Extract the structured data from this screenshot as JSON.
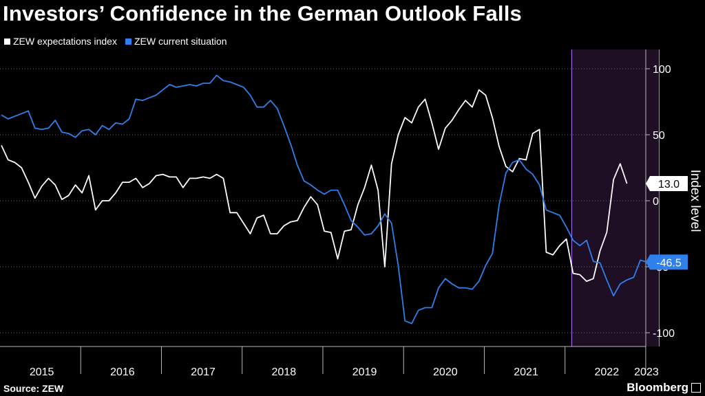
{
  "title": "Investors’ Confidence in the German Outlook Falls",
  "legend": [
    {
      "label": "ZEW expectations index",
      "color": "#ffffff"
    },
    {
      "label": "ZEW current situation",
      "color": "#2f80ed"
    }
  ],
  "source": "Source: ZEW",
  "brand": "Bloomberg",
  "chart_data": {
    "type": "line",
    "ylabel": "Index level",
    "ylim": [
      -100,
      100
    ],
    "y_ticks": [
      100,
      50,
      0,
      -50,
      -100
    ],
    "y_tick_labels": [
      "100",
      "50",
      "0",
      "-50",
      "-100"
    ],
    "x_tick_labels": [
      "2015",
      "2016",
      "2017",
      "2018",
      "2019",
      "2020",
      "2021",
      "2022",
      "2023"
    ],
    "grid": "horizontal-dotted",
    "legend_position": "top-left",
    "highlight_region": {
      "from": "2022-02",
      "to": "2023-03",
      "color": "#1e0f24",
      "border": "#b07cff"
    },
    "series": [
      {
        "name": "ZEW expectations index",
        "color": "#ffffff",
        "end_label": "13.0",
        "points": [
          [
            "2015-01",
            42
          ],
          [
            "2015-02",
            31
          ],
          [
            "2015-03",
            29
          ],
          [
            "2015-04",
            25
          ],
          [
            "2015-05",
            14
          ],
          [
            "2015-06",
            2
          ],
          [
            "2015-07",
            11
          ],
          [
            "2015-08",
            17
          ],
          [
            "2015-09",
            12
          ],
          [
            "2015-10",
            1
          ],
          [
            "2015-11",
            4
          ],
          [
            "2015-12",
            12
          ],
          [
            "2016-01",
            6
          ],
          [
            "2016-02",
            19
          ],
          [
            "2016-03",
            -7
          ],
          [
            "2016-04",
            0
          ],
          [
            "2016-05",
            0
          ],
          [
            "2016-06",
            6
          ],
          [
            "2016-07",
            14
          ],
          [
            "2016-08",
            14
          ],
          [
            "2016-09",
            17
          ],
          [
            "2016-10",
            10
          ],
          [
            "2016-11",
            13
          ],
          [
            "2016-12",
            19
          ],
          [
            "2017-01",
            20
          ],
          [
            "2017-02",
            18
          ],
          [
            "2017-03",
            18
          ],
          [
            "2017-04",
            10
          ],
          [
            "2017-05",
            17
          ],
          [
            "2017-06",
            17
          ],
          [
            "2017-07",
            18
          ],
          [
            "2017-08",
            17
          ],
          [
            "2017-09",
            20
          ],
          [
            "2017-10",
            17
          ],
          [
            "2017-11",
            -9
          ],
          [
            "2017-12",
            -9
          ],
          [
            "2018-01",
            -17
          ],
          [
            "2018-02",
            -25
          ],
          [
            "2018-03",
            -13
          ],
          [
            "2018-04",
            -11
          ],
          [
            "2018-05",
            -25
          ],
          [
            "2018-06",
            -25
          ],
          [
            "2018-07",
            -19
          ],
          [
            "2018-08",
            -16
          ],
          [
            "2018-09",
            -15
          ],
          [
            "2018-10",
            -5
          ],
          [
            "2018-11",
            3
          ],
          [
            "2018-12",
            -3
          ],
          [
            "2019-01",
            -23
          ],
          [
            "2019-02",
            -24
          ],
          [
            "2019-03",
            -44
          ],
          [
            "2019-04",
            -23
          ],
          [
            "2019-05",
            -22
          ],
          [
            "2019-06",
            -3
          ],
          [
            "2019-07",
            10
          ],
          [
            "2019-08",
            27
          ],
          [
            "2019-09",
            8
          ],
          [
            "2019-10",
            -50
          ],
          [
            "2019-11",
            28
          ],
          [
            "2019-12",
            50
          ],
          [
            "2020-01",
            63
          ],
          [
            "2020-02",
            59
          ],
          [
            "2020-03",
            71
          ],
          [
            "2020-04",
            77
          ],
          [
            "2020-05",
            59
          ],
          [
            "2020-06",
            39
          ],
          [
            "2020-07",
            55
          ],
          [
            "2020-08",
            61
          ],
          [
            "2020-09",
            69
          ],
          [
            "2020-10",
            76
          ],
          [
            "2020-11",
            71
          ],
          [
            "2020-12",
            84
          ],
          [
            "2021-01",
            80
          ],
          [
            "2021-02",
            63
          ],
          [
            "2021-03",
            41
          ],
          [
            "2021-04",
            26
          ],
          [
            "2021-05",
            22
          ],
          [
            "2021-06",
            32
          ],
          [
            "2021-07",
            31
          ],
          [
            "2021-08",
            51
          ],
          [
            "2021-09",
            54
          ],
          [
            "2021-10",
            -39
          ],
          [
            "2021-11",
            -41
          ],
          [
            "2021-12",
            -34
          ],
          [
            "2022-01",
            -29
          ],
          [
            "2022-02",
            -55
          ],
          [
            "2022-03",
            -56
          ],
          [
            "2022-04",
            -61
          ],
          [
            "2022-05",
            -59
          ],
          [
            "2022-06",
            -38
          ],
          [
            "2022-07",
            -24
          ],
          [
            "2022-08",
            16
          ],
          [
            "2022-09",
            28
          ],
          [
            "2022-10",
            13.0
          ]
        ]
      },
      {
        "name": "ZEW current situation",
        "color": "#2f80ed",
        "end_label": "-46.5",
        "points": [
          [
            "2015-01",
            65
          ],
          [
            "2015-02",
            62
          ],
          [
            "2015-03",
            64
          ],
          [
            "2015-04",
            66
          ],
          [
            "2015-05",
            68
          ],
          [
            "2015-06",
            55
          ],
          [
            "2015-07",
            54
          ],
          [
            "2015-08",
            55
          ],
          [
            "2015-09",
            61
          ],
          [
            "2015-10",
            52
          ],
          [
            "2015-11",
            51
          ],
          [
            "2015-12",
            48
          ],
          [
            "2016-01",
            53
          ],
          [
            "2016-02",
            54
          ],
          [
            "2016-03",
            50
          ],
          [
            "2016-04",
            57
          ],
          [
            "2016-05",
            54
          ],
          [
            "2016-06",
            59
          ],
          [
            "2016-07",
            58
          ],
          [
            "2016-08",
            62
          ],
          [
            "2016-09",
            77
          ],
          [
            "2016-10",
            76
          ],
          [
            "2016-11",
            78
          ],
          [
            "2016-12",
            80
          ],
          [
            "2017-01",
            84
          ],
          [
            "2017-02",
            88
          ],
          [
            "2017-03",
            86
          ],
          [
            "2017-04",
            87
          ],
          [
            "2017-05",
            88
          ],
          [
            "2017-06",
            87
          ],
          [
            "2017-07",
            89
          ],
          [
            "2017-08",
            89
          ],
          [
            "2017-09",
            95
          ],
          [
            "2017-10",
            91
          ],
          [
            "2017-11",
            90
          ],
          [
            "2017-12",
            88
          ],
          [
            "2018-01",
            86
          ],
          [
            "2018-02",
            80
          ],
          [
            "2018-03",
            71
          ],
          [
            "2018-04",
            71
          ],
          [
            "2018-05",
            76
          ],
          [
            "2018-06",
            70
          ],
          [
            "2018-07",
            57
          ],
          [
            "2018-08",
            43
          ],
          [
            "2018-09",
            27
          ],
          [
            "2018-10",
            15
          ],
          [
            "2018-11",
            12
          ],
          [
            "2018-12",
            8
          ],
          [
            "2019-01",
            5
          ],
          [
            "2019-02",
            8
          ],
          [
            "2019-03",
            8
          ],
          [
            "2019-04",
            -3
          ],
          [
            "2019-05",
            -15
          ],
          [
            "2019-06",
            -20
          ],
          [
            "2019-07",
            -26
          ],
          [
            "2019-08",
            -25
          ],
          [
            "2019-09",
            -19
          ],
          [
            "2019-10",
            -10
          ],
          [
            "2019-11",
            -17
          ],
          [
            "2019-12",
            -49
          ],
          [
            "2020-01",
            -91
          ],
          [
            "2020-02",
            -93
          ],
          [
            "2020-03",
            -83
          ],
          [
            "2020-04",
            -81
          ],
          [
            "2020-05",
            -81
          ],
          [
            "2020-06",
            -66
          ],
          [
            "2020-07",
            -59
          ],
          [
            "2020-08",
            -63
          ],
          [
            "2020-09",
            -66
          ],
          [
            "2020-10",
            -66
          ],
          [
            "2020-11",
            -67
          ],
          [
            "2020-12",
            -61
          ],
          [
            "2021-01",
            -49
          ],
          [
            "2021-02",
            -40
          ],
          [
            "2021-03",
            -3
          ],
          [
            "2021-04",
            21
          ],
          [
            "2021-05",
            29
          ],
          [
            "2021-06",
            31
          ],
          [
            "2021-07",
            24
          ],
          [
            "2021-08",
            20
          ],
          [
            "2021-09",
            12
          ],
          [
            "2021-10",
            -7
          ],
          [
            "2021-11",
            -9
          ],
          [
            "2021-12",
            -11
          ],
          [
            "2022-01",
            -20
          ],
          [
            "2022-02",
            -30
          ],
          [
            "2022-03",
            -34
          ],
          [
            "2022-04",
            -30
          ],
          [
            "2022-05",
            -46
          ],
          [
            "2022-06",
            -47
          ],
          [
            "2022-07",
            -60
          ],
          [
            "2022-08",
            -72
          ],
          [
            "2022-09",
            -63
          ],
          [
            "2022-10",
            -60
          ],
          [
            "2022-11",
            -58
          ],
          [
            "2022-12",
            -45
          ],
          [
            "2023-01",
            -46.5
          ]
        ]
      }
    ]
  }
}
